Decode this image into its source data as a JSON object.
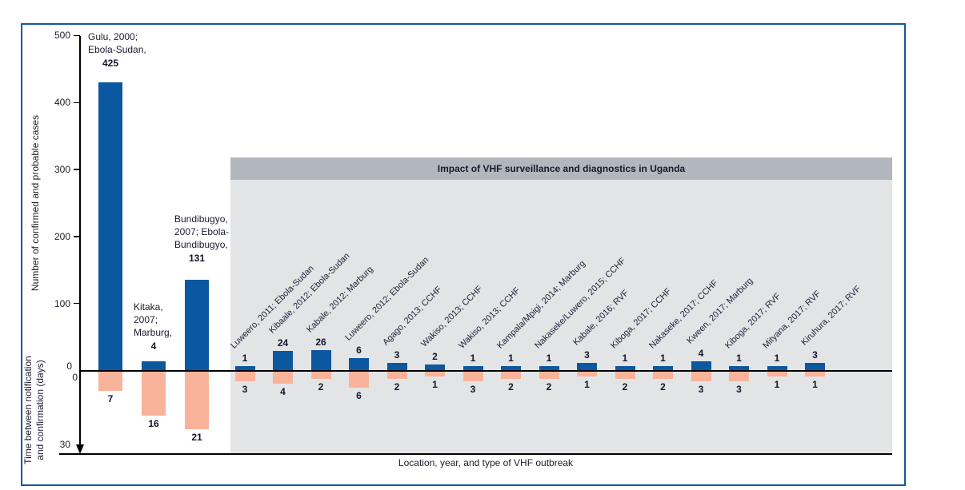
{
  "chart_data": {
    "type": "bar",
    "subtype": "diverging-vertical",
    "region_header": "Impact of VHF surveillance and diagnostics in Uganda",
    "xlabel": "Location, year, and type of VHF outbreak",
    "top_scale": {
      "label": "Number of confirmed and probable cases",
      "ticks": [
        500,
        400,
        300,
        200,
        100
      ],
      "zero_label": "0",
      "range": [
        0,
        500
      ]
    },
    "bottom_scale": {
      "label_lines": [
        "Time between notification",
        "and confirmation (days)"
      ],
      "zero_label": "0",
      "end_tick": "30",
      "range": [
        0,
        30
      ],
      "direction": "down"
    },
    "series": [
      {
        "name": "Number of confirmed and probable cases",
        "color": "#0b57a0"
      },
      {
        "name": "Time between notification and confirmation (days)",
        "color": "#f9b39b"
      }
    ],
    "colors": {
      "cases_bar": "#0b57a0",
      "days_bar": "#f9b39b",
      "frame": "#1158a0",
      "header_band": "#b1b7bd",
      "panel": "#e3e4e6",
      "axis": "#000000"
    },
    "outbreaks": [
      {
        "label": "Gulu, 2000; Ebola-Sudan",
        "cases": 425,
        "days": 7,
        "in_region": false,
        "label_lines": [
          "Gulu, 2000;",
          "Ebola-Sudan,"
        ]
      },
      {
        "label": "Kitaka, 2007; Marburg",
        "cases": 4,
        "days": 16,
        "in_region": false,
        "label_lines": [
          "Kitaka,",
          "2007;",
          "Marburg,"
        ]
      },
      {
        "label": "Bundibugyo, 2007; Ebola-Bundibugyo",
        "cases": 131,
        "days": 21,
        "in_region": false,
        "label_lines": [
          "Bundibugyo,",
          "2007; Ebola-",
          "Bundibugyo,"
        ]
      },
      {
        "label": "Luweero, 2011; Ebola-Sudan",
        "cases": 1,
        "days": 3,
        "in_region": true
      },
      {
        "label": "Kibaale, 2012; Ebola-Sudan",
        "cases": 24,
        "days": 4,
        "in_region": true
      },
      {
        "label": "Kabale, 2012; Marburg",
        "cases": 26,
        "days": 2,
        "in_region": true
      },
      {
        "label": "Luweero, 2012; Ebola-Sudan",
        "cases": 6,
        "days": 6,
        "in_region": true
      },
      {
        "label": "Agago, 2013; CCHF",
        "cases": 3,
        "days": 2,
        "in_region": true
      },
      {
        "label": "Wakiso, 2013; CCHF",
        "cases": 2,
        "days": 1,
        "in_region": true
      },
      {
        "label": "Wakiso, 2013; CCHF",
        "cases": 1,
        "days": 3,
        "in_region": true
      },
      {
        "label": "Kampala/Mpigi, 2014; Marburg",
        "cases": 1,
        "days": 2,
        "in_region": true
      },
      {
        "label": "Nakaseke/Luwero, 2015; CCHF",
        "cases": 1,
        "days": 2,
        "in_region": true
      },
      {
        "label": "Kabale, 2016; RVF",
        "cases": 3,
        "days": 1,
        "in_region": true
      },
      {
        "label": "Kiboga, 2017; CCHF",
        "cases": 1,
        "days": 2,
        "in_region": true
      },
      {
        "label": "Nakaseke, 2017; CCHF",
        "cases": 1,
        "days": 2,
        "in_region": true
      },
      {
        "label": "Kween, 2017; Marburg",
        "cases": 4,
        "days": 3,
        "in_region": true
      },
      {
        "label": "Kiboga, 2017; RVF",
        "cases": 1,
        "days": 3,
        "in_region": true
      },
      {
        "label": "Mityana, 2017; RVF",
        "cases": 1,
        "days": 1,
        "in_region": true
      },
      {
        "label": "Kiruhura, 2017; RVF",
        "cases": 3,
        "days": 1,
        "in_region": true
      }
    ]
  }
}
